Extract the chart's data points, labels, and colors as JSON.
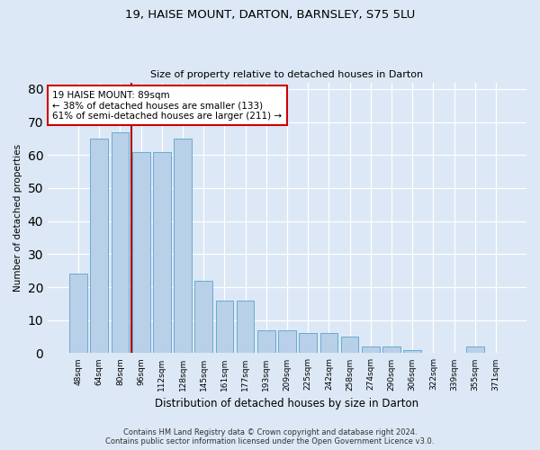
{
  "title1": "19, HAISE MOUNT, DARTON, BARNSLEY, S75 5LU",
  "title2": "Size of property relative to detached houses in Darton",
  "xlabel": "Distribution of detached houses by size in Darton",
  "ylabel": "Number of detached properties",
  "categories": [
    "48sqm",
    "64sqm",
    "80sqm",
    "96sqm",
    "112sqm",
    "128sqm",
    "145sqm",
    "161sqm",
    "177sqm",
    "193sqm",
    "209sqm",
    "225sqm",
    "242sqm",
    "258sqm",
    "274sqm",
    "290sqm",
    "306sqm",
    "322sqm",
    "339sqm",
    "355sqm",
    "371sqm"
  ],
  "values": [
    24,
    65,
    67,
    61,
    61,
    65,
    22,
    16,
    16,
    7,
    7,
    6,
    6,
    5,
    2,
    2,
    1,
    0,
    0,
    2,
    0
  ],
  "bar_color": "#b8d0e8",
  "bar_edge_color": "#6aaad4",
  "vline_x": 2.55,
  "annotation_text": "19 HAISE MOUNT: 89sqm\n← 38% of detached houses are smaller (133)\n61% of semi-detached houses are larger (211) →",
  "annotation_box_facecolor": "#ffffff",
  "annotation_box_edgecolor": "#cc0000",
  "vline_color": "#aa0000",
  "footer_line1": "Contains HM Land Registry data © Crown copyright and database right 2024.",
  "footer_line2": "Contains public sector information licensed under the Open Government Licence v3.0.",
  "ylim": [
    0,
    82
  ],
  "yticks": [
    0,
    10,
    20,
    30,
    40,
    50,
    60,
    70,
    80
  ],
  "background_color": "#dce8f5",
  "plot_bg_color": "#dce8f5"
}
